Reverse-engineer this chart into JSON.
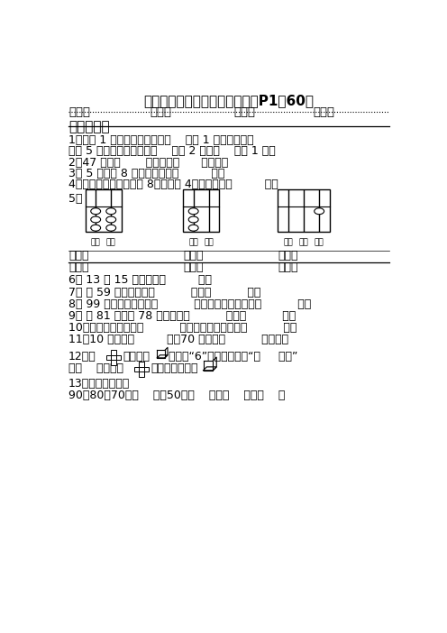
{
  "title": "一年级下册第一～五单元练习（P1～60）",
  "header_fields": [
    "班别：",
    "姓名：",
    "学号：",
    "评分："
  ],
  "section1": "一、填一填",
  "q1a": "1、一张 1 元的人民币可以换（    ）张 1 角的人民币；",
  "q1b": "一张 5 角的人民币可以换（    ）张 2 角和（    ）张 1 角。",
  "q2": "2、47 里有（       ）个十和（      ）个一。",
  "q3": "3、 5 个一和 8 个十合起来是（         ）。",
  "q4": "4、一个两位数，个位是 8，十位是 4，这个数是（         ）。",
  "q5_label": "5、",
  "ab1_col_labels": [
    "十位",
    "个位"
  ],
  "ab2_col_labels": [
    "十位",
    "个位"
  ],
  "ab3_col_labels": [
    "百位",
    "十位",
    "个位"
  ],
  "write_label": "写作：",
  "read_label": "读作：",
  "q6": "6、 13 和 15 的中间是（         ）。",
  "q7": "7、 和 59 相邻的数是（          ）和（          ）。",
  "q8": "8、 99 前面小一个数是（          ），后面大一个数是（          ）。",
  "q9": "9、 比 81 小，比 78 大的数是（          ）和（          ）。",
  "q10": "10、最大的两位数是（          ），最小的两位数是（          ）。",
  "q11": "11、10 个十是（         ）。70 里面有（          ）个十。",
  "q12a": "12、用",
  "q12a2": "做成一个",
  "q12a3": "，数字“6”的对面是数字“（     ）。”",
  "q12b1": "用（    ）这样的",
  "q12b2": "可以拼出一个大",
  "q13": "13、找规律填数。",
  "q13b": "90、80、70、（    ）、50、（    ）、（    ）、（    ）",
  "bg_color": "#ffffff"
}
